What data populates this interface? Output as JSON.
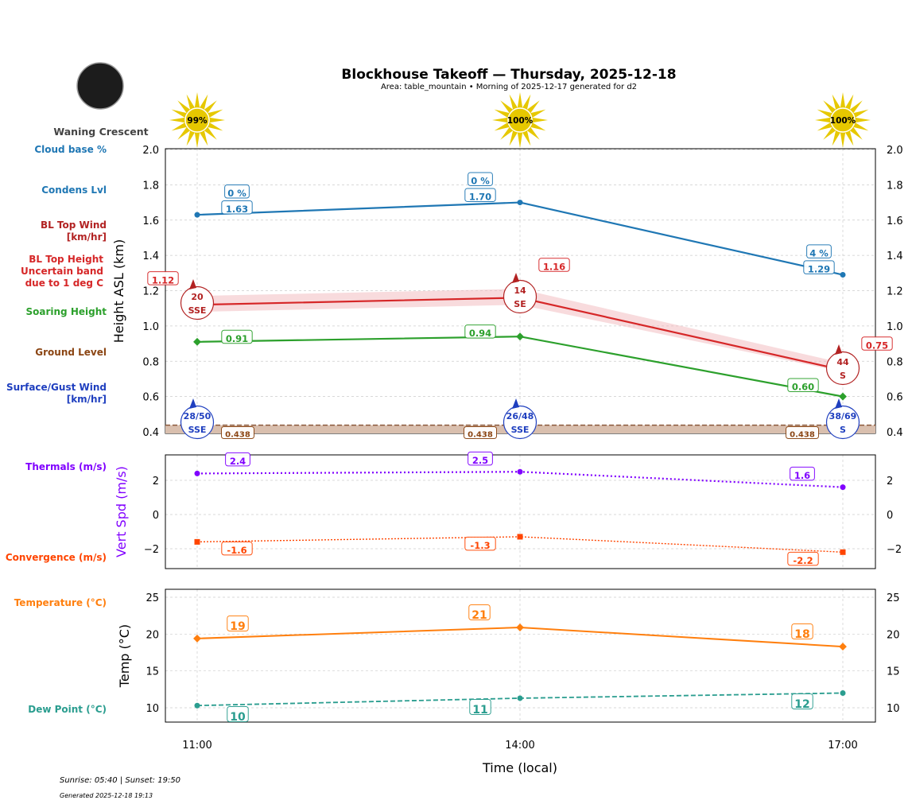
{
  "title": "Blockhouse Takeoff — Thursday, 2025-12-18",
  "subtitle": "Area: table_mountain • Morning of 2025-12-17 generated for d2",
  "moon_phase": "Waning Crescent",
  "footer": {
    "sun_times": "Sunrise: 05:40 | Sunset: 19:50",
    "generated": "Generated 2025-12-18 19:13"
  },
  "colors": {
    "condens": "#1f77b4",
    "bl_top": "#d62728",
    "bl_wind": "#b22222",
    "soaring": "#2ca02c",
    "ground": "#8b4513",
    "surface_wind": "#1f3fbf",
    "thermals": "#8000ff",
    "convergence": "#ff4500",
    "temperature": "#ff7f0e",
    "dew": "#2a9d8f",
    "sun": "#e6c800"
  },
  "chart_data": {
    "categories": [
      "11:00",
      "14:00",
      "17:00"
    ],
    "xlabel": "Time (local)",
    "sun_cloud_labels": [
      "99%",
      "100%",
      "100%"
    ],
    "panels": [
      {
        "type": "line",
        "ylabel": "Height ASL (km)",
        "ylim": [
          0.4,
          2.0
        ],
        "yticks": [
          "0.4",
          "0.6",
          "0.8",
          "1.0",
          "1.2",
          "1.4",
          "1.6",
          "1.8",
          "2.0"
        ],
        "grid": true,
        "row_labels": [
          "Cloud base %",
          "Condens Lvl",
          "BL Top Wind\n[km/hr]",
          "BL Top Height\nUncertain band\ndue to 1 deg C",
          "Soaring Height",
          "Ground Level",
          "Surface/Gust Wind\n[km/hr]"
        ],
        "cloud_base_pct": [
          "0 %",
          "0 %",
          "4 %"
        ],
        "condens_lvl": [
          1.63,
          1.7,
          1.29
        ],
        "bl_top": [
          1.12,
          1.16,
          0.75
        ],
        "bl_top_band": [
          [
            1.08,
            1.17
          ],
          [
            1.12,
            1.21
          ],
          [
            0.74,
            0.79
          ]
        ],
        "bl_top_wind": [
          {
            "speed": "20",
            "dir": "SSE"
          },
          {
            "speed": "14",
            "dir": "SE"
          },
          {
            "speed": "44",
            "dir": "S"
          }
        ],
        "soaring": [
          0.91,
          0.94,
          0.6
        ],
        "ground": [
          0.438,
          0.438,
          0.438
        ],
        "surface_wind": [
          {
            "speed": "28/50",
            "dir": "SSE"
          },
          {
            "speed": "26/48",
            "dir": "SSE"
          },
          {
            "speed": "38/69",
            "dir": "S"
          }
        ]
      },
      {
        "type": "line",
        "ylabel": "Vert Spd (m/s)",
        "ylim": [
          -3.2,
          3.5
        ],
        "yticks": [
          "−2",
          "0",
          "2"
        ],
        "row_labels": [
          "Thermals (m/s)",
          "Convergence (m/s)"
        ],
        "thermals": [
          2.4,
          2.5,
          1.6
        ],
        "convergence": [
          -1.6,
          -1.3,
          -2.2
        ]
      },
      {
        "type": "line",
        "ylabel": "Temp (°C)",
        "ylim": [
          8,
          26
        ],
        "yticks": [
          "10",
          "15",
          "20",
          "25"
        ],
        "row_labels": [
          "Temperature (°C)",
          "Dew Point (°C)"
        ],
        "temperature": [
          19.4,
          20.9,
          18.3
        ],
        "temperature_labels": [
          "19",
          "21",
          "18"
        ],
        "dew_point": [
          10.3,
          11.3,
          12.0
        ],
        "dew_point_labels": [
          "10",
          "11",
          "12"
        ]
      }
    ]
  }
}
